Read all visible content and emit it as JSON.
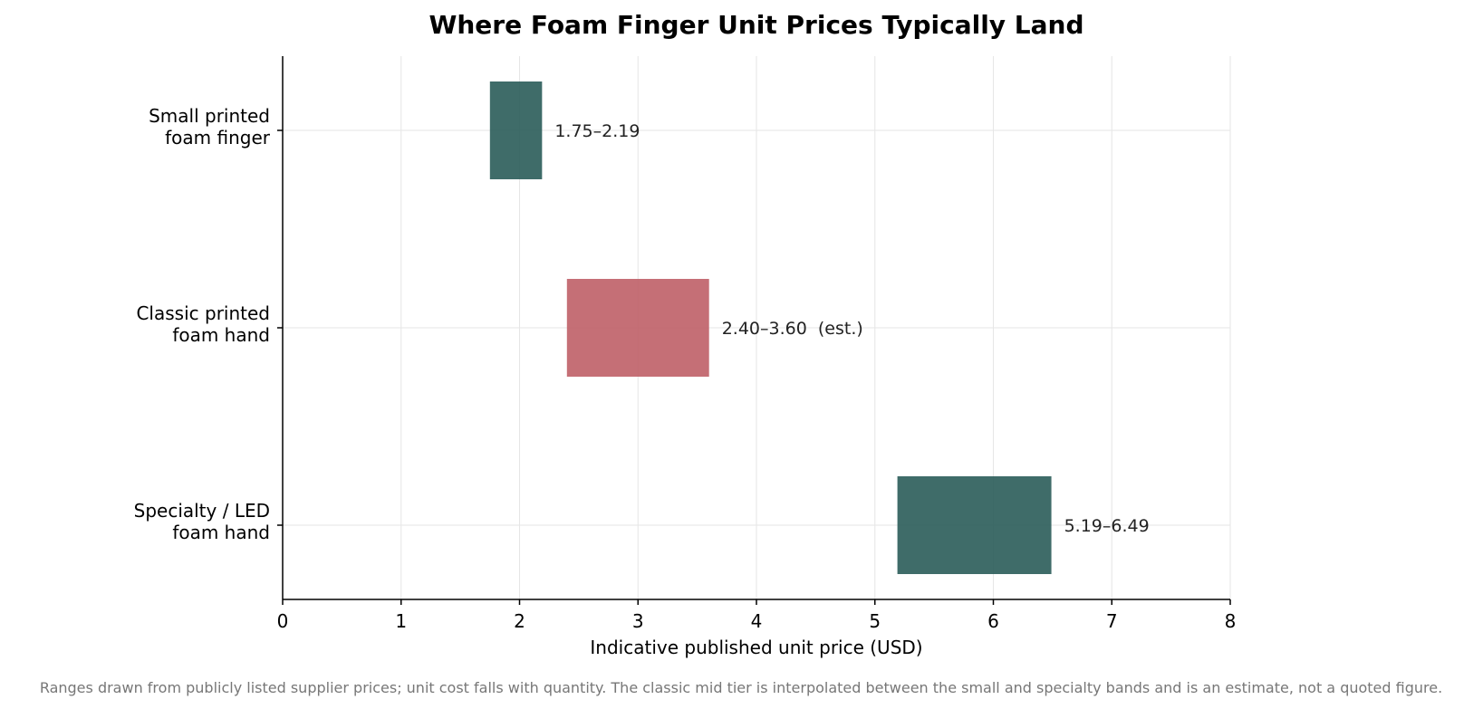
{
  "chart_data": {
    "type": "range-bar",
    "orientation": "horizontal",
    "title": "Where Foam Finger Unit Prices Typically Land",
    "xlabel": "Indicative published unit price (USD)",
    "ylabel": "",
    "xlim": [
      0,
      8
    ],
    "xticks": [
      "0",
      "1",
      "2",
      "3",
      "4",
      "5",
      "6",
      "7",
      "8"
    ],
    "grid": true,
    "categories": [
      {
        "label_lines": [
          "Small printed",
          "foam finger"
        ],
        "low": 1.75,
        "high": 2.19,
        "label": "1.75–2.19",
        "color": "#2f5f5c"
      },
      {
        "label_lines": [
          "Classic printed",
          "foam hand"
        ],
        "low": 2.4,
        "high": 3.6,
        "label": "2.40–3.60  (est.)",
        "color": "#c0636a"
      },
      {
        "label_lines": [
          "Specialty / LED",
          "foam hand"
        ],
        "low": 5.19,
        "high": 6.49,
        "label": "5.19–6.49",
        "color": "#2f5f5c"
      }
    ],
    "footnote": "Ranges drawn from publicly listed supplier prices; unit cost falls with quantity. The classic mid tier is interpolated between the small and specialty bands and is an estimate, not a quoted figure."
  }
}
